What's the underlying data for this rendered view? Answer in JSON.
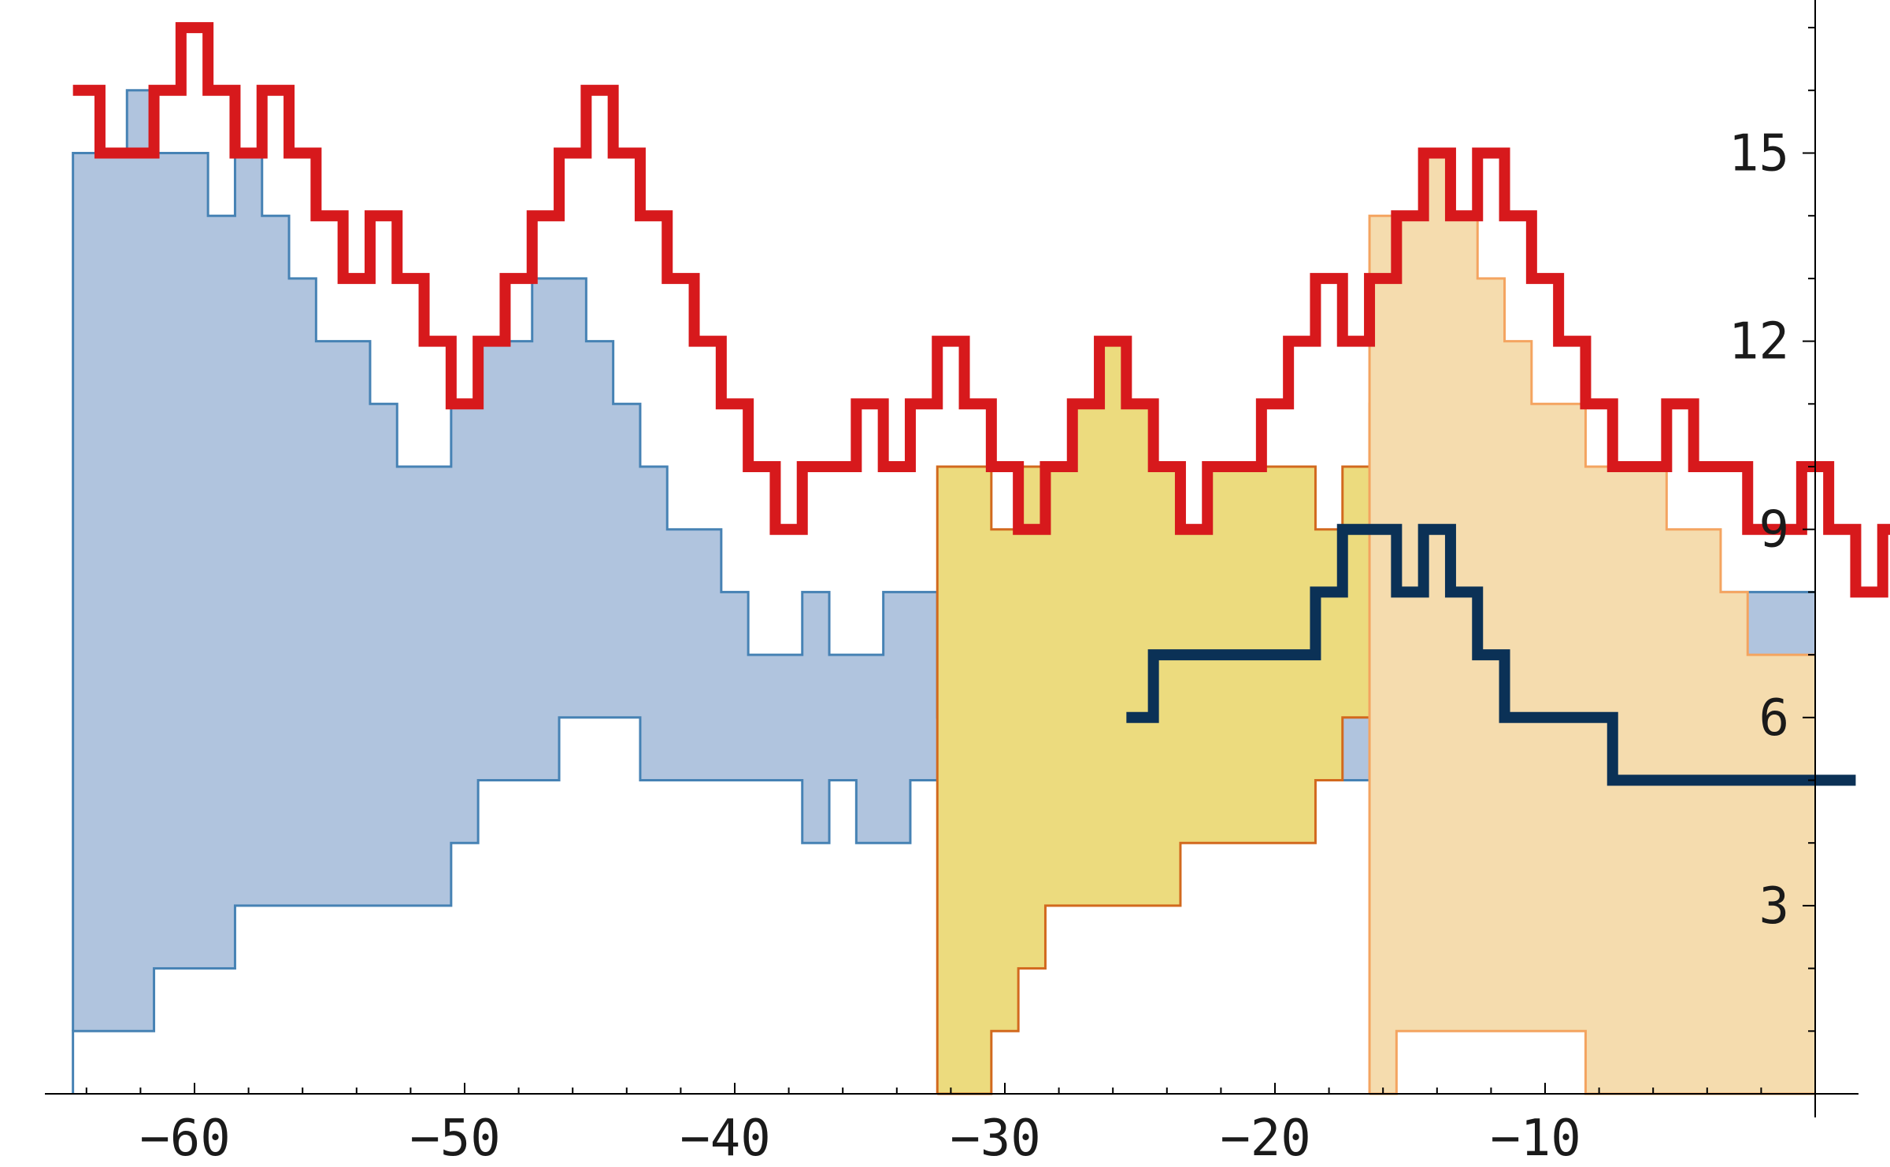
{
  "chart_data": {
    "type": "area",
    "xlim": [
      -65.5,
      1.5
    ],
    "ylim": [
      0,
      17.5
    ],
    "x_ticks": [
      -60,
      -50,
      -40,
      -30,
      -20,
      -10
    ],
    "x_tick_labels": [
      "−60",
      "−50",
      "−40",
      "−30",
      "−20",
      "−10"
    ],
    "y_ticks": [
      3,
      6,
      9,
      12,
      15
    ],
    "y_tick_labels": [
      "3",
      "6",
      "9",
      "12",
      "15"
    ],
    "grid": false,
    "bands": [
      {
        "fill": "#b0c4de",
        "stroke": "#4682b4",
        "start": -64,
        "upper": [
          15,
          15,
          16,
          15,
          15,
          14,
          15,
          14,
          13,
          12,
          12,
          11,
          10,
          10,
          11,
          12,
          12,
          13,
          13,
          12,
          11,
          10,
          9,
          9,
          8,
          7,
          7,
          8,
          7,
          7,
          8,
          8,
          6,
          7,
          8,
          9,
          8
        ],
        "lower": [
          1,
          1,
          1,
          2,
          2,
          2,
          3,
          3,
          3,
          3,
          3,
          3,
          3,
          3,
          4,
          5,
          5,
          5,
          6,
          6,
          6,
          5,
          5,
          5,
          5,
          5,
          5,
          4,
          5,
          4,
          4,
          5,
          5,
          4,
          4,
          5,
          5
        ]
      },
      {
        "fill": "#ecdb7e",
        "stroke": "#d2691e",
        "start": -32,
        "upper": [
          10,
          10,
          9,
          10,
          10,
          11,
          12,
          11,
          10,
          9,
          10,
          10,
          10,
          10,
          9,
          10,
          11,
          11,
          10,
          11,
          10,
          9,
          8,
          8,
          7,
          7,
          6,
          6,
          6,
          6,
          6,
          6,
          6
        ],
        "lower": [
          0,
          0,
          1,
          2,
          3,
          3,
          3,
          3,
          3,
          4,
          4,
          4,
          4,
          4,
          5,
          6,
          6,
          6,
          6,
          6,
          6,
          6,
          5,
          5,
          5,
          5,
          4,
          4,
          4,
          4,
          4,
          4,
          4
        ]
      },
      {
        "fill": "#f5dcae",
        "stroke": "#f4a460",
        "start": -16,
        "upper": [
          14,
          14,
          15,
          14,
          13,
          12,
          11,
          11,
          10,
          10,
          10,
          9,
          9,
          8,
          7,
          7,
          7
        ],
        "lower": [
          0,
          1,
          1,
          1,
          1,
          1,
          1,
          1,
          0,
          0,
          0,
          0,
          0,
          0,
          0,
          0,
          0
        ]
      }
    ],
    "series": [
      {
        "color": "#d7191c",
        "stroke_width": 14,
        "start": -64,
        "values": [
          16,
          15,
          15,
          16,
          17,
          16,
          15,
          16,
          15,
          14,
          13,
          14,
          13,
          12,
          11,
          12,
          13,
          14,
          15,
          16,
          15,
          14,
          13,
          12,
          11,
          10,
          9,
          10,
          10,
          11,
          10,
          11,
          12,
          11,
          10,
          9,
          10,
          11,
          12,
          11,
          10,
          9,
          10,
          10,
          11,
          12,
          13,
          12,
          13,
          14,
          15,
          14,
          15,
          14,
          13,
          12,
          11,
          10,
          10,
          11,
          10,
          10,
          9,
          9,
          10,
          9,
          8,
          9
        ]
      },
      {
        "color": "#0b3156",
        "stroke_width": 14,
        "start": -25,
        "values": [
          6,
          7,
          7,
          7,
          7,
          7,
          7,
          8,
          9,
          9,
          8,
          9,
          8,
          7,
          6,
          6,
          6,
          6,
          5,
          5,
          5,
          5,
          5,
          5,
          5,
          5,
          5
        ]
      }
    ]
  }
}
